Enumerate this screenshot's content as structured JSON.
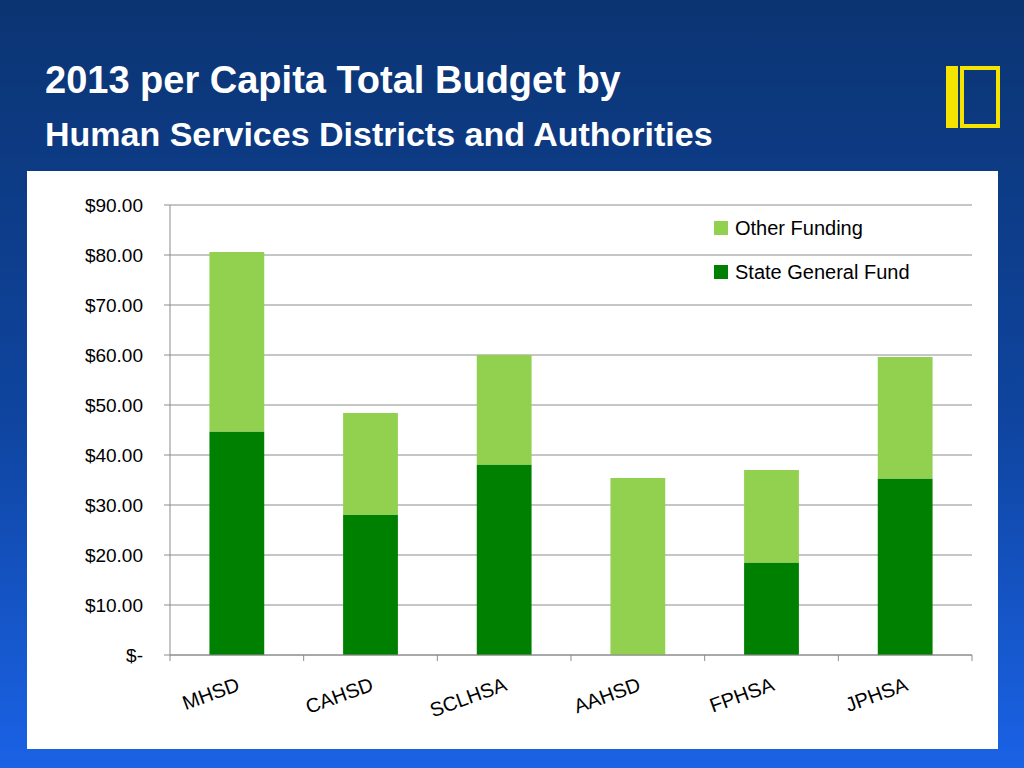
{
  "chart_data": {
    "type": "bar",
    "title": "2013 per Capita Total Budget by",
    "subtitle": "Human Services Districts and Authorities",
    "categories": [
      "MHSD",
      "CAHSD",
      "SCLHSA",
      "AAHSD",
      "FPHSA",
      "JPHSA"
    ],
    "series": [
      {
        "name": "State General Fund",
        "color": "#008000",
        "values": [
          44.7,
          28,
          38.1,
          0,
          18.5,
          35.3
        ]
      },
      {
        "name": "Other Funding",
        "color": "#92d050",
        "values": [
          35.9,
          20.4,
          21.9,
          35.4,
          18.5,
          24.3
        ]
      }
    ],
    "stacked": true,
    "ylim": [
      0,
      90
    ],
    "yticks": [
      {
        "value": 0,
        "label": "$-"
      },
      {
        "value": 10,
        "label": "$10.00"
      },
      {
        "value": 20,
        "label": "$20.00"
      },
      {
        "value": 30,
        "label": "$30.00"
      },
      {
        "value": 40,
        "label": "$40.00"
      },
      {
        "value": 50,
        "label": "$50.00"
      },
      {
        "value": 60,
        "label": "$60.00"
      },
      {
        "value": 70,
        "label": "$70.00"
      },
      {
        "value": 80,
        "label": "$80.00"
      },
      {
        "value": 90,
        "label": "$90.00"
      }
    ],
    "grid": true,
    "legend": "top-right"
  }
}
